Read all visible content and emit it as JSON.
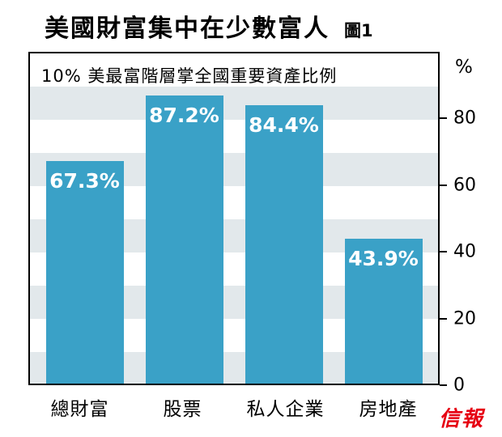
{
  "title": "美國財富集中在少數富人",
  "figure_label": "圖1",
  "logo_text": "信報",
  "colors": {
    "bar": "#3aa1c7",
    "stripe": "#e2e8eb",
    "logo": "#e60012",
    "text": "#000000"
  },
  "chart_data": {
    "type": "bar",
    "title": "美國財富集中在少數富人",
    "subtitle": "10% 美最富階層掌全國重要資產比例",
    "categories": [
      "總財富",
      "股票",
      "私人企業",
      "房地產"
    ],
    "values": [
      67.3,
      87.2,
      84.4,
      43.9
    ],
    "value_labels": [
      "67.3%",
      "87.2%",
      "84.4%",
      "43.9%"
    ],
    "xlabel": "",
    "ylabel": "%",
    "ylim": [
      0,
      100
    ],
    "yticks": [
      0,
      20,
      40,
      60,
      80
    ],
    "unit_label": "%",
    "grid": "striped-bands",
    "legend": "none",
    "axis_side": "right"
  }
}
